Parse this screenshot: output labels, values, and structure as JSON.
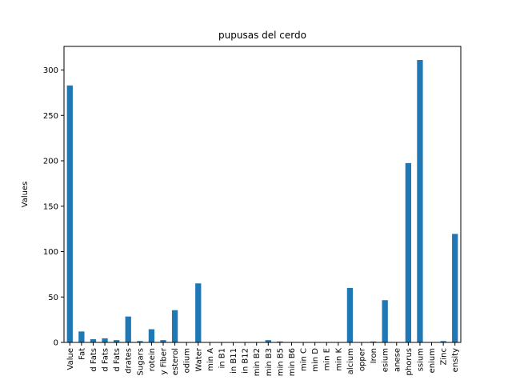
{
  "chart_data": {
    "type": "bar",
    "title": "pupusas del cerdo",
    "xlabel": "",
    "ylabel": "Values",
    "ylim": [
      0,
      326
    ],
    "yticks": [
      0,
      50,
      100,
      150,
      200,
      250,
      300
    ],
    "bar_color": "#1f77b4",
    "grid": false,
    "categories": [
      "Value",
      "Fat",
      "d Fats",
      "d Fats",
      "d Fats",
      "drates",
      "Sugars",
      "rotein",
      "y Fiber",
      "esterol",
      "odium",
      "Water",
      "min A",
      "in B1",
      "in B11",
      "in B12",
      "min B2",
      "min B3",
      "min B5",
      "min B6",
      "min C",
      "min D",
      "min E",
      "min K",
      "alcium",
      "opper",
      "Iron",
      "esium",
      "anese",
      "phorus",
      "ssium",
      "enium",
      "Zinc",
      "ensity"
    ],
    "values": [
      283,
      12,
      3.5,
      4.5,
      2.5,
      28.5,
      1.5,
      14.5,
      2.5,
      35.5,
      0,
      65,
      0,
      0,
      0,
      0,
      0,
      2.5,
      1,
      0,
      0,
      0,
      0,
      0,
      60,
      0,
      1,
      46.5,
      0,
      197.5,
      311,
      0,
      1.5,
      119.5
    ]
  }
}
